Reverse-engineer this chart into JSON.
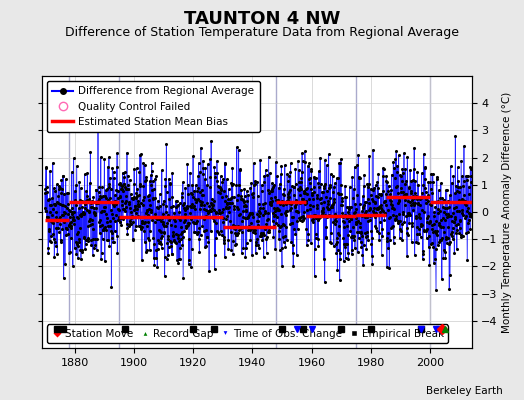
{
  "title": "TAUNTON 4 NW",
  "subtitle": "Difference of Station Temperature Data from Regional Average",
  "ylabel": "Monthly Temperature Anomaly Difference (°C)",
  "xlim": [
    1869,
    2014
  ],
  "ylim": [
    -5,
    5
  ],
  "yticks": [
    -4,
    -3,
    -2,
    -1,
    0,
    1,
    2,
    3,
    4
  ],
  "xticks": [
    1880,
    1900,
    1920,
    1940,
    1960,
    1980,
    2000
  ],
  "background_color": "#e8e8e8",
  "plot_bg_color": "#ffffff",
  "seed": 42,
  "num_points": 1680,
  "x_start": 1870,
  "mean_bias_segments": [
    {
      "x": [
        1870,
        1878
      ],
      "y": [
        -0.3,
        -0.3
      ]
    },
    {
      "x": [
        1878,
        1895
      ],
      "y": [
        0.35,
        0.35
      ]
    },
    {
      "x": [
        1895,
        1930
      ],
      "y": [
        -0.2,
        -0.2
      ]
    },
    {
      "x": [
        1930,
        1948
      ],
      "y": [
        -0.55,
        -0.55
      ]
    },
    {
      "x": [
        1948,
        1958
      ],
      "y": [
        0.35,
        0.35
      ]
    },
    {
      "x": [
        1958,
        1975
      ],
      "y": [
        -0.15,
        -0.15
      ]
    },
    {
      "x": [
        1975,
        1985
      ],
      "y": [
        -0.1,
        -0.1
      ]
    },
    {
      "x": [
        1985,
        2000
      ],
      "y": [
        0.55,
        0.55
      ]
    },
    {
      "x": [
        2000,
        2014
      ],
      "y": [
        0.35,
        0.35
      ]
    }
  ],
  "vertical_lines": [
    1878,
    1895,
    1948,
    1975,
    2000
  ],
  "vertical_line_color": "#aaaacc",
  "empirical_breaks": [
    1874,
    1876,
    1897,
    1920,
    1927,
    1950,
    1957,
    1970,
    1980,
    1997
  ],
  "obs_change": [
    1955,
    1960,
    1997,
    2002,
    2003
  ],
  "station_move": [
    2004
  ],
  "record_gap": [
    2005
  ],
  "marker_y": -4.3,
  "line_color": "#0000ff",
  "dot_color": "#000000",
  "bias_color": "#ff0000",
  "title_fontsize": 13,
  "subtitle_fontsize": 9,
  "axis_fontsize": 7.5,
  "tick_fontsize": 8,
  "legend_fontsize": 7.5
}
